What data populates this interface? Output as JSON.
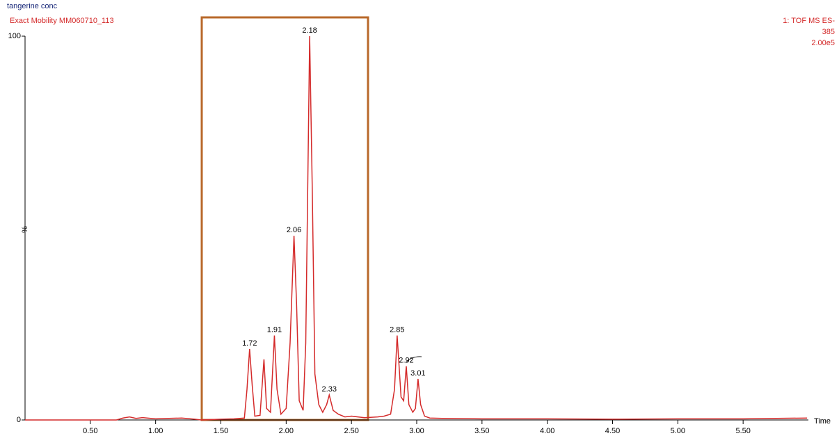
{
  "chart_data": {
    "type": "line",
    "title": "tangerine conc",
    "subtitle": "Exact Mobility MM060710_113",
    "instrument": [
      "1: TOF MS ES-",
      "385"
    ],
    "scale": "2.00e5",
    "xlabel": "Time",
    "ylabel": "%",
    "color": "#d42a2a",
    "x": [
      0,
      0.5,
      0.7,
      0.75,
      0.8,
      0.85,
      0.9,
      1.0,
      1.1,
      1.2,
      1.3,
      1.35,
      1.5,
      1.6,
      1.68,
      1.7,
      1.72,
      1.74,
      1.76,
      1.8,
      1.83,
      1.85,
      1.88,
      1.91,
      1.93,
      1.96,
      2.0,
      2.03,
      2.06,
      2.08,
      2.1,
      2.13,
      2.15,
      2.18,
      2.2,
      2.22,
      2.25,
      2.28,
      2.31,
      2.33,
      2.36,
      2.4,
      2.45,
      2.5,
      2.6,
      2.7,
      2.75,
      2.8,
      2.83,
      2.85,
      2.88,
      2.9,
      2.92,
      2.94,
      2.97,
      2.99,
      3.01,
      3.03,
      3.06,
      3.1,
      3.2,
      3.5,
      4.0,
      4.5,
      5.0,
      5.5,
      5.99
    ],
    "values": [
      0,
      0,
      0,
      0.5,
      0.8,
      0.4,
      0.6,
      0.3,
      0.4,
      0.5,
      0.2,
      0,
      0.2,
      0.3,
      0.5,
      8,
      18.5,
      9,
      1,
      1.2,
      15.8,
      3,
      2,
      22,
      8,
      1.5,
      3,
      20,
      48,
      30,
      5,
      2.5,
      20,
      100,
      60,
      12,
      4,
      2,
      4,
      6.5,
      2.5,
      1.5,
      0.8,
      1,
      0.6,
      0.8,
      1,
      1.5,
      8,
      22,
      6,
      5,
      14,
      4,
      2,
      3,
      10.7,
      4,
      1,
      0.5,
      0.4,
      0.3,
      0.3,
      0.2,
      0.3,
      0.3,
      0.5
    ],
    "peaks": [
      1.72,
      1.91,
      2.06,
      2.18,
      2.33,
      2.85,
      2.92,
      3.01
    ],
    "xlim": [
      0,
      6
    ],
    "ylim": [
      0,
      100
    ],
    "xticks": [
      {
        "value": 0.5,
        "label": "0.50"
      },
      {
        "value": 1,
        "label": "1.00"
      },
      {
        "value": 1.5,
        "label": "1.50"
      },
      {
        "value": 2,
        "label": "2.00"
      },
      {
        "value": 2.5,
        "label": "2.50"
      },
      {
        "value": 3,
        "label": "3.00"
      },
      {
        "value": 3.5,
        "label": "3.50"
      },
      {
        "value": 4,
        "label": "4.00"
      },
      {
        "value": 4.5,
        "label": "4.50"
      },
      {
        "value": 5,
        "label": "5.00"
      },
      {
        "value": 5.5,
        "label": "5.50"
      }
    ],
    "yticks": [
      0,
      100
    ]
  }
}
